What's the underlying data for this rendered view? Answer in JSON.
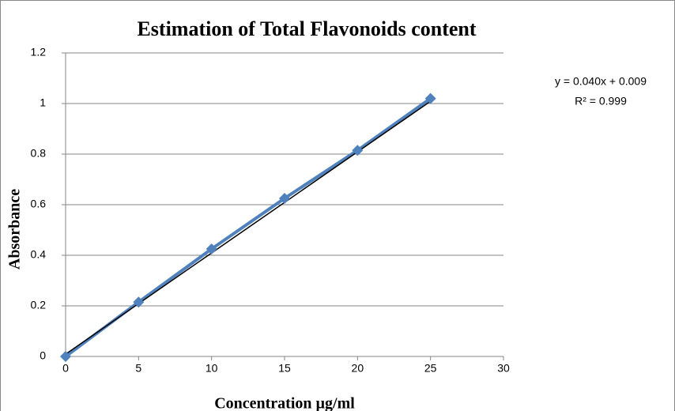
{
  "chart_data": {
    "type": "scatter",
    "title": "Estimation of Total Flavonoids content",
    "x_label": "Concentration µg/ml",
    "y_label": "Absorbance",
    "x": [
      0,
      5,
      10,
      15,
      20,
      25
    ],
    "series": [
      {
        "name": "Absorbance",
        "color": "#4f81bd",
        "values": [
          0,
          0.215,
          0.425,
          0.625,
          0.815,
          1.02
        ]
      }
    ],
    "trendline": {
      "slope": 0.04,
      "intercept": 0.009,
      "color": "#000000",
      "label": "y = 0.040x + 0.009",
      "r2_label": "R² = 0.999"
    },
    "xlim": [
      0,
      30
    ],
    "xticks": [
      0,
      5,
      10,
      15,
      20,
      25,
      30
    ],
    "ylim": [
      0,
      1.2
    ],
    "yticks": [
      0,
      0.2,
      0.4,
      0.6,
      0.8,
      1,
      1.2
    ],
    "grid": true
  }
}
